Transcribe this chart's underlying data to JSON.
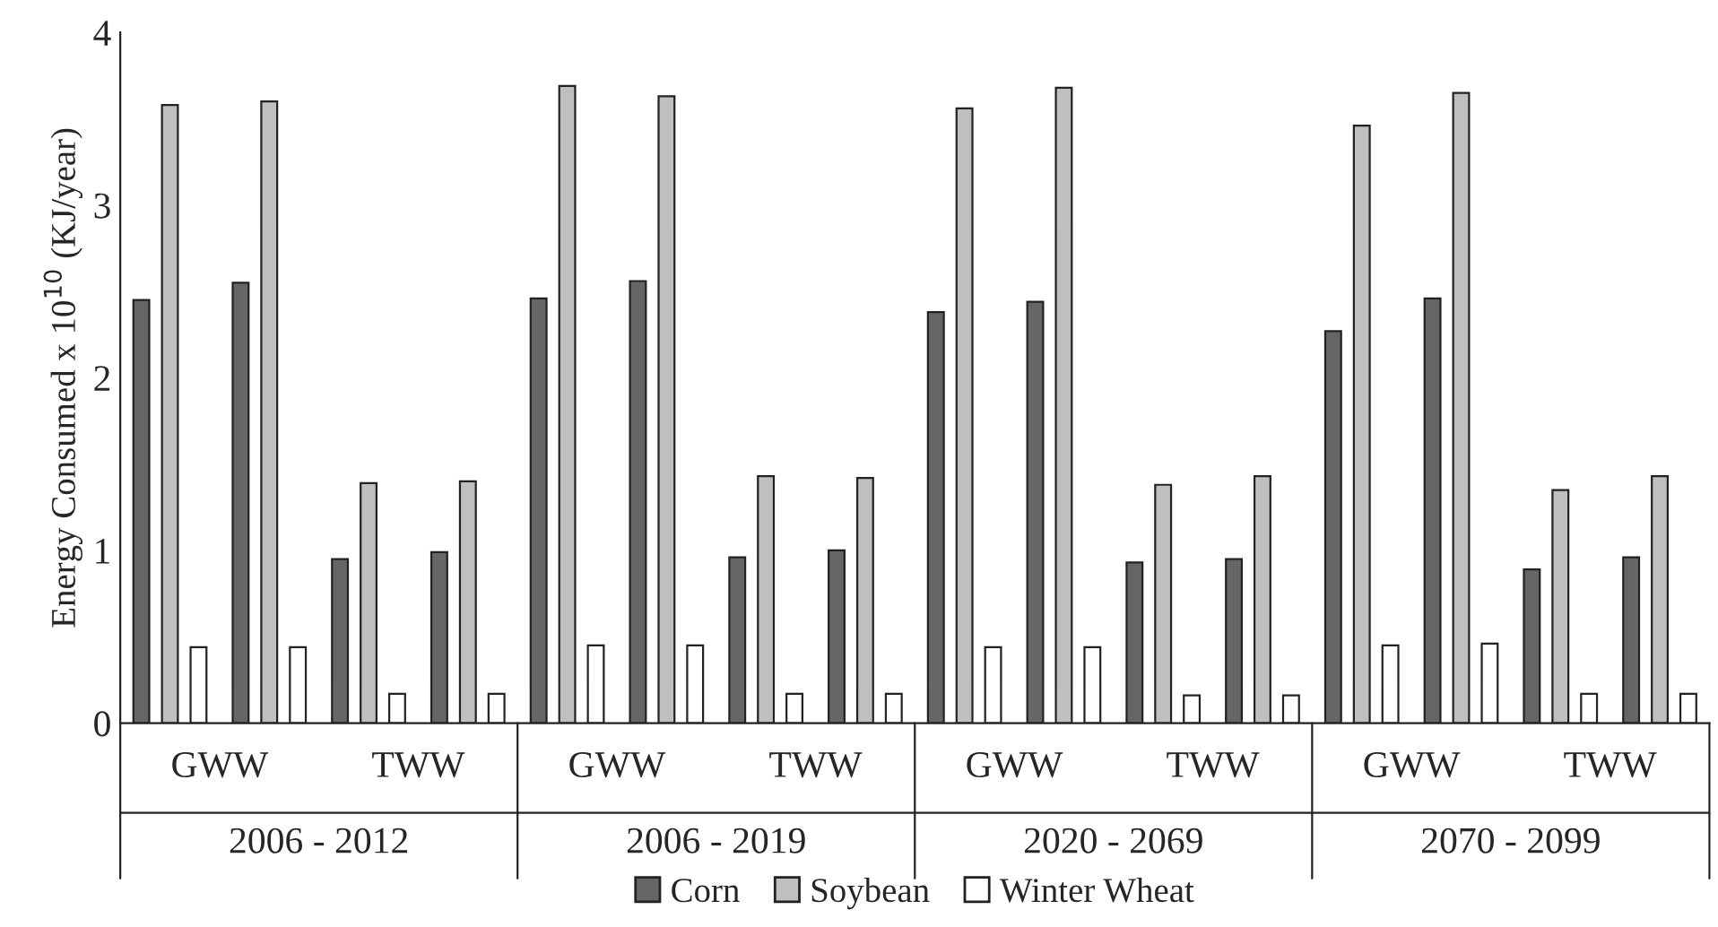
{
  "chart_data": {
    "type": "bar",
    "ylabel": "Energy Consumed x 10$^{10}$ (KJ/year)",
    "categories": [
      null,
      null,
      null,
      null,
      null,
      null,
      null,
      null,
      null,
      null,
      null,
      null,
      null,
      null,
      null,
      null
    ],
    "series": [
      {
        "name": "Corn",
        "color": "#666666",
        "values": [
          2.45,
          2.55,
          0.95,
          0.99,
          2.46,
          2.56,
          0.96,
          1.0,
          2.38,
          2.44,
          0.93,
          0.95,
          2.27,
          2.46,
          0.89,
          0.96
        ]
      },
      {
        "name": "Soybean",
        "color": "#bfbfbf",
        "values": [
          3.58,
          3.6,
          1.39,
          1.4,
          3.69,
          3.63,
          1.43,
          1.42,
          3.56,
          3.68,
          1.38,
          1.43,
          3.46,
          3.65,
          1.35,
          1.43
        ]
      },
      {
        "name": "Winter Wheat",
        "color": "#ffffff",
        "values": [
          0.44,
          0.44,
          0.17,
          0.17,
          0.45,
          0.45,
          0.17,
          0.17,
          0.44,
          0.44,
          0.16,
          0.16,
          0.45,
          0.46,
          0.17,
          0.17
        ]
      }
    ],
    "annotations": [
      "GWW",
      "TWW",
      "GWW",
      "TWW",
      "GWW",
      "TWW",
      "GWW",
      "TWW",
      "2006 - 2012",
      "2006 - 2019",
      "2020 - 2069",
      "2070 - 2099"
    ],
    "ylim": [
      0,
      4
    ],
    "yticks": [
      0,
      1,
      2,
      3,
      4
    ],
    "grid": false,
    "legend": "bottom"
  }
}
